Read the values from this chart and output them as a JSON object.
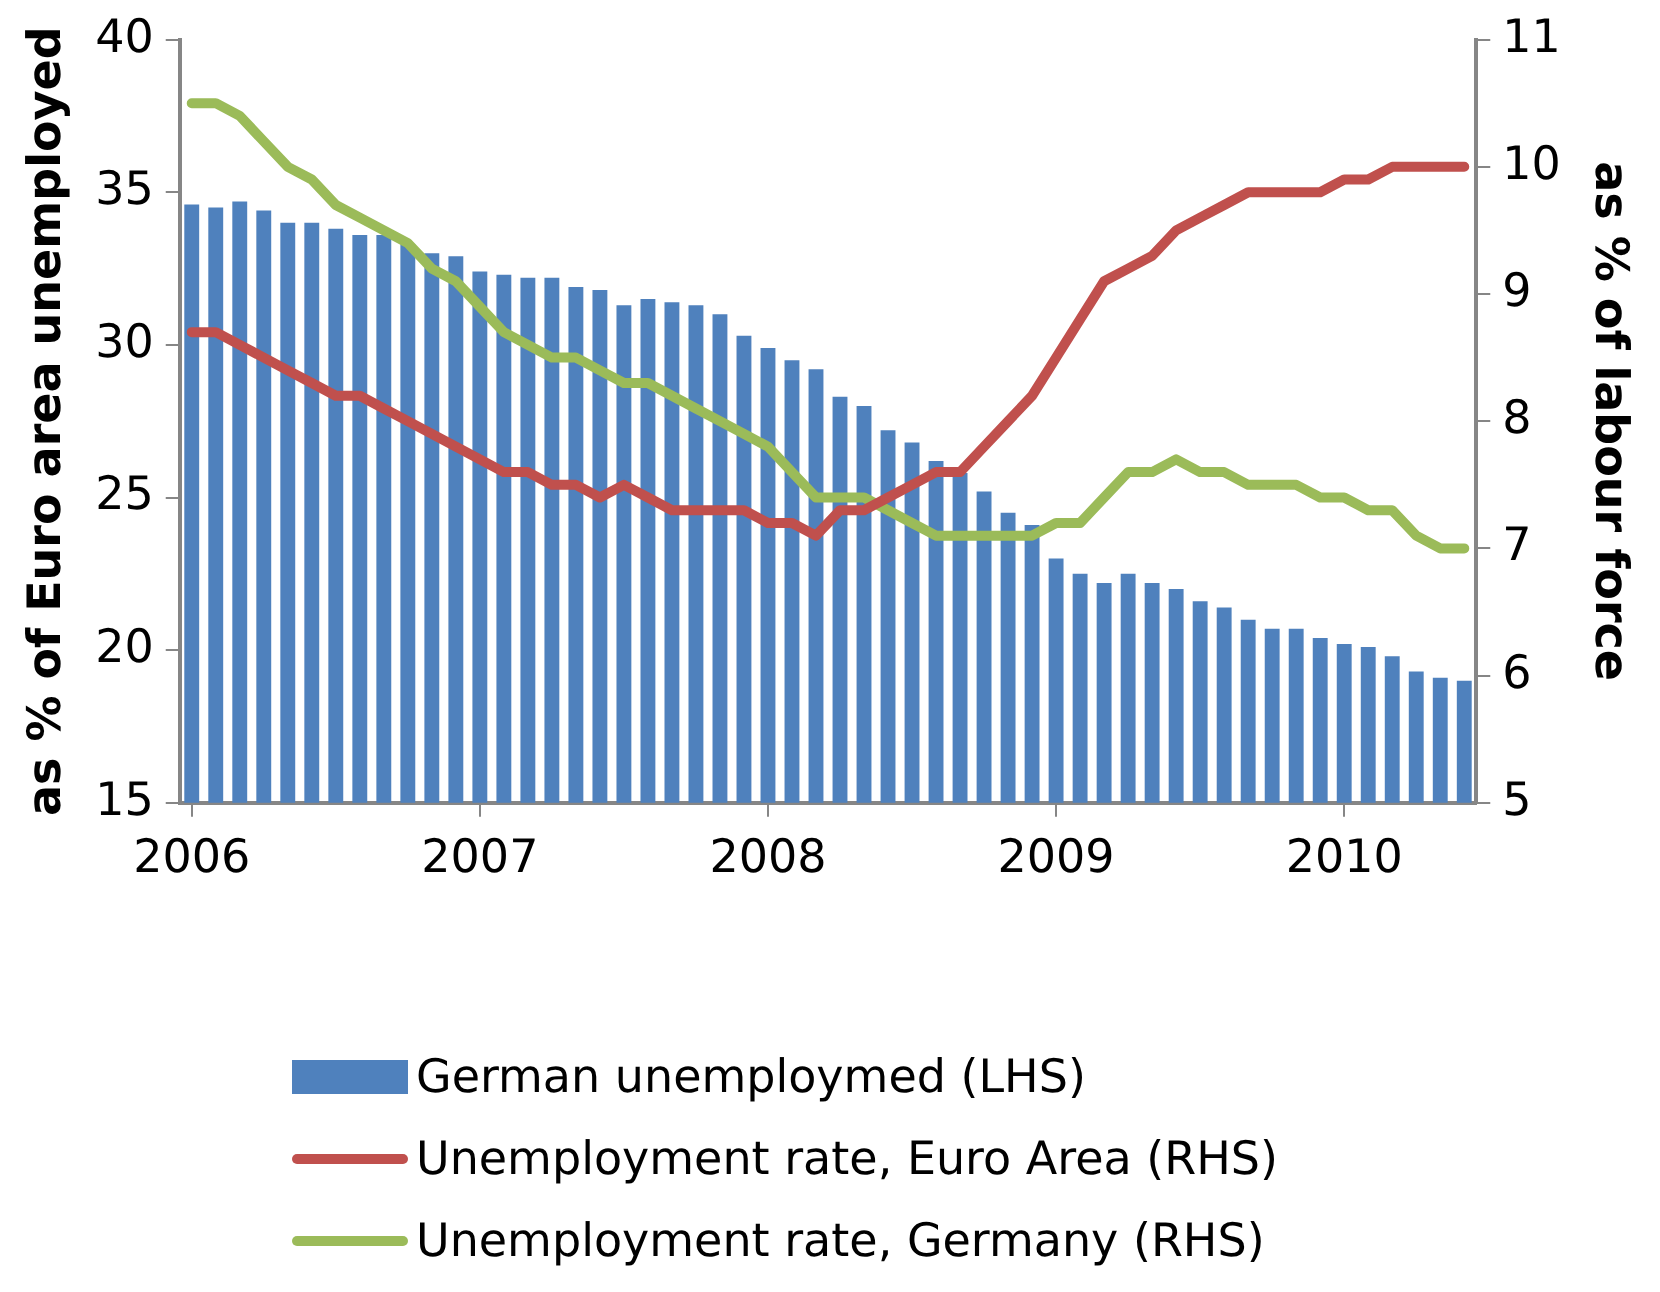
{
  "chart_data": {
    "type": "bar",
    "ylabel": "as % of Euro area unemployed",
    "y2label": "as % of labour force",
    "categories": [
      "2006",
      null,
      null,
      null,
      null,
      null,
      null,
      null,
      null,
      null,
      null,
      null,
      "2007",
      null,
      null,
      null,
      null,
      null,
      null,
      null,
      null,
      null,
      null,
      null,
      "2008",
      null,
      null,
      null,
      null,
      null,
      null,
      null,
      null,
      null,
      null,
      null,
      "2009",
      null,
      null,
      null,
      null,
      null,
      null,
      null,
      null,
      null,
      null,
      null,
      "2010",
      null,
      null,
      null,
      null,
      null
    ],
    "series": [
      {
        "name": "German unemploymed (LHS)",
        "color": "#4f81bd",
        "values": [
          34.6,
          34.5,
          34.7,
          34.4,
          34.0,
          34.0,
          33.8,
          33.6,
          33.6,
          33.3,
          33.0,
          32.9,
          32.4,
          32.3,
          32.2,
          32.2,
          31.9,
          31.8,
          31.3,
          31.5,
          31.4,
          31.3,
          31.0,
          30.3,
          29.9,
          29.5,
          29.2,
          28.3,
          28.0,
          27.2,
          26.8,
          26.2,
          25.8,
          25.2,
          24.5,
          24.1,
          23.0,
          22.5,
          22.2,
          22.5,
          22.2,
          22.0,
          21.6,
          21.4,
          21.0,
          20.7,
          20.7,
          20.4,
          20.2,
          20.1,
          19.8,
          19.3,
          19.1,
          19.0
        ]
      },
      {
        "name": "Unemployment rate, Euro Area (RHS)",
        "type": "line",
        "axis": "y2",
        "color": "#c0504d",
        "values": [
          8.7,
          8.7,
          8.6,
          8.5,
          8.4,
          8.3,
          8.2,
          8.2,
          8.1,
          8.0,
          7.9,
          7.8,
          7.7,
          7.6,
          7.6,
          7.5,
          7.5,
          7.4,
          7.5,
          7.4,
          7.3,
          7.3,
          7.3,
          7.3,
          7.2,
          7.2,
          7.1,
          7.3,
          7.3,
          7.4,
          7.5,
          7.6,
          7.6,
          7.8,
          8.0,
          8.2,
          8.5,
          8.8,
          9.1,
          9.2,
          9.3,
          9.5,
          9.6,
          9.7,
          9.8,
          9.8,
          9.8,
          9.8,
          9.9,
          9.9,
          10.0,
          10.0,
          10.0,
          10.0
        ]
      },
      {
        "name": "Unemployment rate, Germany (RHS)",
        "type": "line",
        "axis": "y2",
        "color": "#9bbb59",
        "values": [
          10.5,
          10.5,
          10.4,
          10.2,
          10.0,
          9.9,
          9.7,
          9.6,
          9.5,
          9.4,
          9.2,
          9.1,
          8.9,
          8.7,
          8.6,
          8.5,
          8.5,
          8.4,
          8.3,
          8.3,
          8.2,
          8.1,
          8.0,
          7.9,
          7.8,
          7.6,
          7.4,
          7.4,
          7.4,
          7.3,
          7.2,
          7.1,
          7.1,
          7.1,
          7.1,
          7.1,
          7.2,
          7.2,
          7.4,
          7.6,
          7.6,
          7.7,
          7.6,
          7.6,
          7.5,
          7.5,
          7.5,
          7.4,
          7.4,
          7.3,
          7.3,
          7.1,
          7.0,
          7.0
        ]
      }
    ],
    "ylim": [
      15,
      40
    ],
    "yticks": [
      15,
      20,
      25,
      30,
      35,
      40
    ],
    "y2lim": [
      5,
      11
    ],
    "y2ticks": [
      5,
      6,
      7,
      8,
      9,
      10,
      11
    ],
    "grid": false,
    "legend": "bottom",
    "marker": "none"
  }
}
